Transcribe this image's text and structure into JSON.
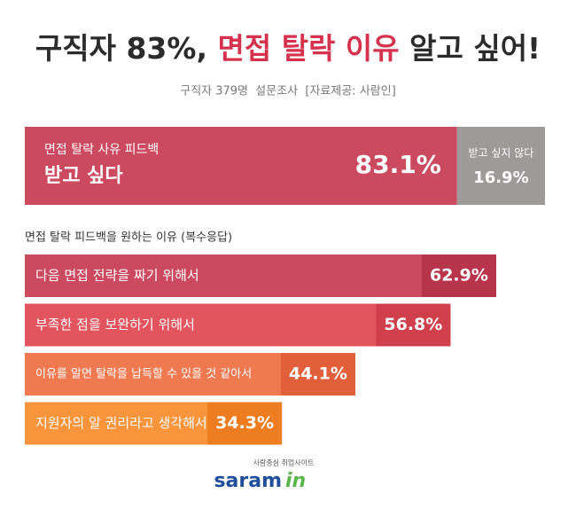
{
  "title": {
    "lead": "구직자 83%,",
    "highlight": "면접 탈락 이유",
    "tail": "알고 싶어!"
  },
  "subtitle": "구직자 379명  설문조사  [자료제공: 사람인]",
  "chart_data": [
    {
      "type": "split",
      "categories": [
        [
          "면접 탈락 사유 피드백",
          "받고 싶다"
        ],
        [
          "받고 싶지 않다"
        ]
      ],
      "values": [
        83.1,
        16.9
      ],
      "value_labels": [
        "83.1%",
        "16.9%"
      ],
      "colors": [
        "#cc4a60",
        "#9e9a9a"
      ],
      "xlim": [
        0,
        100
      ]
    },
    {
      "type": "hbar",
      "title": "면접 탈락 피드백을 원하는 이유 (복수응답)",
      "categories": [
        "다음 면접 전략을 짜기 위해서",
        "부족한 점을 보완하기 위해서",
        "이유를 알면 탈락을 납득할 수 있을 것 같아서",
        "지원자의 알 권리라고 생각해서"
      ],
      "values": [
        62.9,
        56.8,
        44.1,
        34.3
      ],
      "value_labels": [
        "62.9%",
        "56.8%",
        "44.1%",
        "34.3%"
      ],
      "colors": [
        "#cc4a60",
        "#e2555f",
        "#ef7a52",
        "#f7943c"
      ],
      "value_colors": [
        "#b8344b",
        "#cf3f4c",
        "#e25f3b",
        "#ee7d22"
      ],
      "xlim": [
        0,
        70
      ]
    }
  ],
  "logo": {
    "tagline": "사람중심 취업사이트",
    "name": "saram",
    "accent": "in"
  }
}
